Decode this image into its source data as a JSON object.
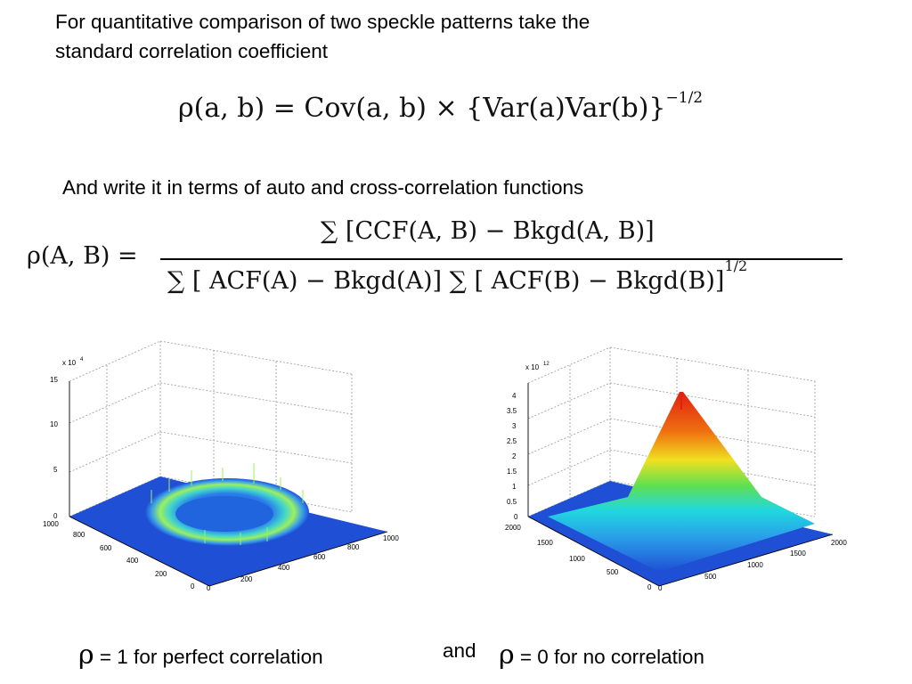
{
  "intro": {
    "line1": "For quantitative comparison of two speckle patterns take the",
    "line2": "standard correlation coefficient"
  },
  "equation1": "ρ(a, b) = Cov(a, b) × {Var(a)Var(b)}",
  "equation1_exponent": "−1/2",
  "intro2": "And write it in terms of auto and cross-correlation functions",
  "equation2": {
    "lhs": "ρ(A, B) =",
    "numerator": "∑ [CCF(A, B) − Bkgd(A, B)]",
    "denominator": "∑ [ ACF(A) − Bkgd(A)] ∑ [ ACF(B) − Bkgd(B)]",
    "exponent": "1/2"
  },
  "plot_left": {
    "multiplier": "x 10",
    "multiplier_exp": "4",
    "z_ticks": [
      "0",
      "5",
      "10",
      "15"
    ],
    "y_ticks": [
      "0",
      "200",
      "400",
      "600",
      "800",
      "1000"
    ],
    "x_ticks": [
      "0",
      "200",
      "400",
      "600",
      "800",
      "1000"
    ]
  },
  "plot_right": {
    "multiplier": "x 10",
    "multiplier_exp": "12",
    "z_ticks": [
      "0",
      "0.5",
      "1",
      "1.5",
      "2",
      "2.5",
      "3",
      "3.5",
      "4"
    ],
    "y_ticks": [
      "0",
      "500",
      "1000",
      "1500",
      "2000"
    ],
    "x_ticks": [
      "0",
      "500",
      "1000",
      "1500",
      "2000"
    ]
  },
  "bottom": {
    "rho": "ρ",
    "left_text": "= 1 for perfect correlation",
    "and": "and",
    "right_text": "= 0 for no correlation"
  }
}
